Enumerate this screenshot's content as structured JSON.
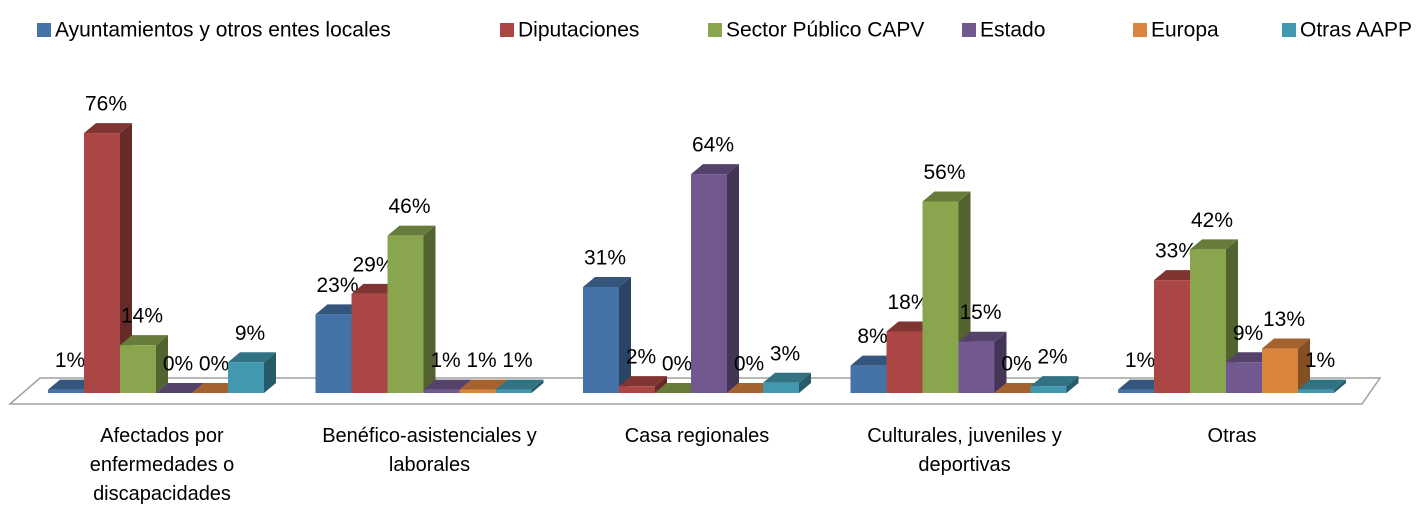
{
  "chart_data": {
    "type": "bar3d",
    "categories": [
      "Afectados por enfermedades o discapacidades",
      "Benéfico-asistenciales y laborales",
      "Casa regionales",
      "Culturales, juveniles y deportivas",
      "Otras"
    ],
    "legend": "top",
    "series": [
      {
        "name": "Ayuntamientos y otros entes locales",
        "color": "#4572a7",
        "values": [
          1,
          23,
          31,
          8,
          1
        ],
        "value_labels": [
          "1%",
          "23%",
          "31%",
          "8%",
          "1%"
        ]
      },
      {
        "name": "Diputaciones",
        "color": "#aa4643",
        "values": [
          76,
          29,
          2,
          18,
          33
        ],
        "value_labels": [
          "76%",
          "29%",
          "2%",
          "18%",
          "33%"
        ]
      },
      {
        "name": "Sector Público CAPV",
        "color": "#89a54e",
        "values": [
          14,
          46,
          0,
          56,
          42
        ],
        "value_labels": [
          "14%",
          "46%",
          "0%",
          "56%",
          "42%"
        ]
      },
      {
        "name": "Estado",
        "color": "#71588f",
        "values": [
          0,
          1,
          64,
          15,
          9
        ],
        "value_labels": [
          "0%",
          "1%",
          "64%",
          "15%",
          "9%"
        ]
      },
      {
        "name": "Europa",
        "color": "#db843d",
        "values": [
          0,
          1,
          0,
          0,
          13
        ],
        "value_labels": [
          "0%",
          "1%",
          "0%",
          "0%",
          "13%"
        ]
      },
      {
        "name": "Otras AAPP",
        "color": "#4198af",
        "values": [
          9,
          1,
          3,
          2,
          1
        ],
        "value_labels": [
          "9%",
          "1%",
          "3%",
          "2%",
          "1%"
        ]
      }
    ]
  }
}
